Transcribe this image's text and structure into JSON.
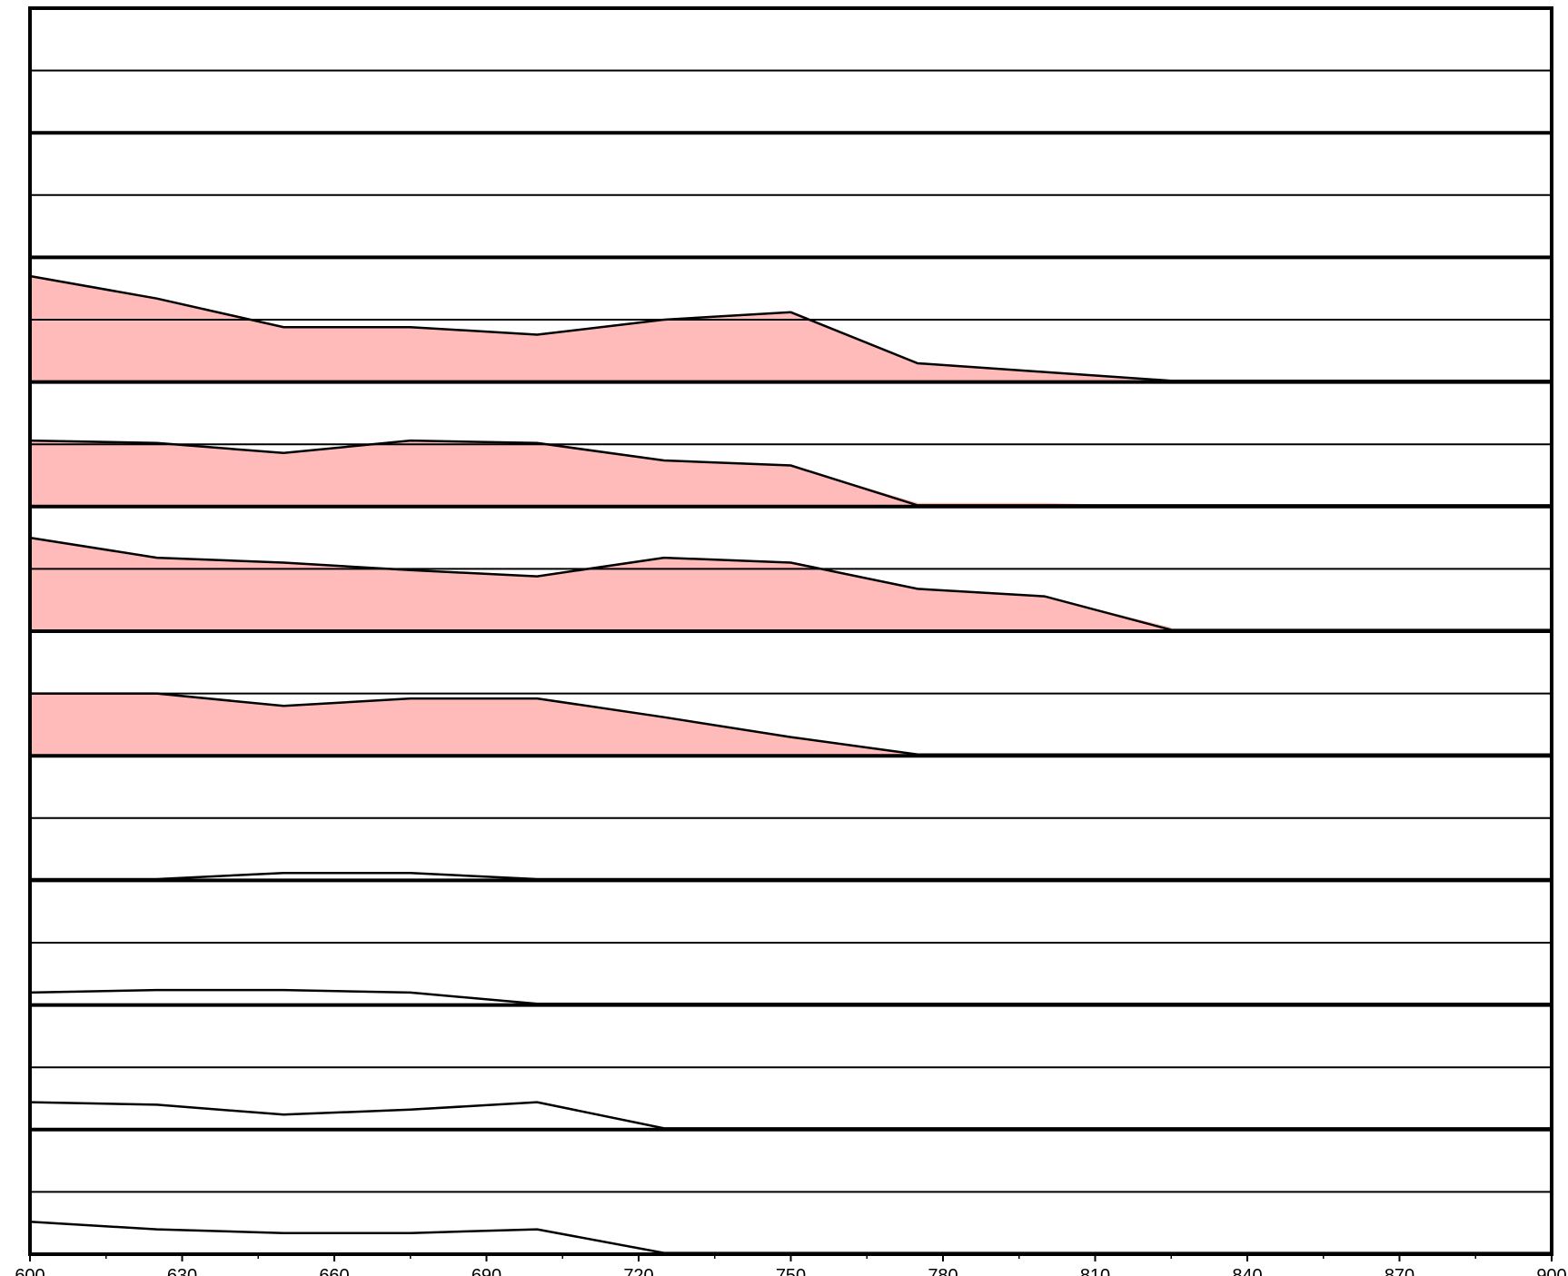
{
  "chart_data": {
    "type": "area",
    "title": "",
    "xlabel": "",
    "ylabel": "",
    "xlim": [
      600,
      900
    ],
    "x_ticks": [
      "600",
      "630",
      "660",
      "690",
      "720",
      "750",
      "780",
      "810",
      "840",
      "870",
      "900"
    ],
    "x_minor_step": 15,
    "band_count": 10,
    "band_ylim": [
      0,
      1
    ],
    "midline": 0.5,
    "grid": false,
    "legend": "none",
    "colors": {
      "fill": "#ffbaba",
      "line": "#000000",
      "background": "#ffffff"
    },
    "x": [
      600,
      625,
      650,
      675,
      700,
      725,
      750,
      775,
      800,
      825
    ],
    "bands": [
      {
        "line": [
          0,
          0,
          0,
          0,
          0,
          0,
          0,
          0,
          0,
          0
        ],
        "fill": [
          0,
          0,
          0,
          0,
          0,
          0,
          0,
          0,
          0,
          0
        ]
      },
      {
        "line": [
          0,
          0,
          0,
          0,
          0,
          0,
          0,
          0,
          0,
          0
        ],
        "fill": [
          0,
          0,
          0,
          0,
          0,
          0,
          0,
          0,
          0,
          0
        ]
      },
      {
        "line": [
          0.85,
          0.67,
          0.44,
          0.44,
          0.38,
          0.5,
          0.56,
          0.15,
          0.08,
          0.01
        ],
        "fill": [
          0.85,
          0.67,
          0.44,
          0.44,
          0.38,
          0.5,
          0.56,
          0.15,
          0.08,
          0.0
        ]
      },
      {
        "line": [
          0.53,
          0.51,
          0.43,
          0.53,
          0.51,
          0.37,
          0.33,
          0.01,
          0.01,
          0.01
        ],
        "fill": [
          0.53,
          0.51,
          0.43,
          0.53,
          0.51,
          0.37,
          0.33,
          0.03,
          0.03,
          0.0
        ]
      },
      {
        "line": [
          0.75,
          0.59,
          0.55,
          0.49,
          0.44,
          0.59,
          0.55,
          0.34,
          0.28,
          0.01
        ],
        "fill": [
          0.75,
          0.59,
          0.55,
          0.49,
          0.44,
          0.59,
          0.55,
          0.34,
          0.28,
          0.03
        ]
      },
      {
        "line": [
          0.5,
          0.5,
          0.4,
          0.46,
          0.46,
          0.31,
          0.15,
          0.01,
          0.01,
          0.01
        ],
        "fill": [
          0.5,
          0.5,
          0.4,
          0.46,
          0.46,
          0.31,
          0.15,
          0.02,
          0.0,
          0.0
        ]
      },
      {
        "line": [
          0.01,
          0.01,
          0.06,
          0.06,
          0.01,
          0.01,
          0.01,
          0.01,
          0.01,
          0.01
        ],
        "fill": [
          0,
          0,
          0,
          0,
          0,
          0,
          0,
          0,
          0,
          0
        ]
      },
      {
        "line": [
          0.1,
          0.12,
          0.12,
          0.1,
          0.01,
          0.01,
          0.01,
          0.01,
          0.01,
          0.01
        ],
        "fill": [
          0,
          0,
          0,
          0,
          0,
          0,
          0,
          0,
          0,
          0
        ]
      },
      {
        "line": [
          0.22,
          0.2,
          0.12,
          0.16,
          0.22,
          0.01,
          0.01,
          0.01,
          0.01,
          0.01
        ],
        "fill": [
          0,
          0,
          0,
          0,
          0,
          0,
          0,
          0,
          0,
          0
        ]
      },
      {
        "line": [
          0.26,
          0.2,
          0.17,
          0.17,
          0.2,
          0.01,
          0.01,
          0.01,
          0.01,
          0.01
        ],
        "fill": [
          0,
          0,
          0,
          0,
          0,
          0,
          0,
          0,
          0,
          0
        ]
      }
    ]
  }
}
